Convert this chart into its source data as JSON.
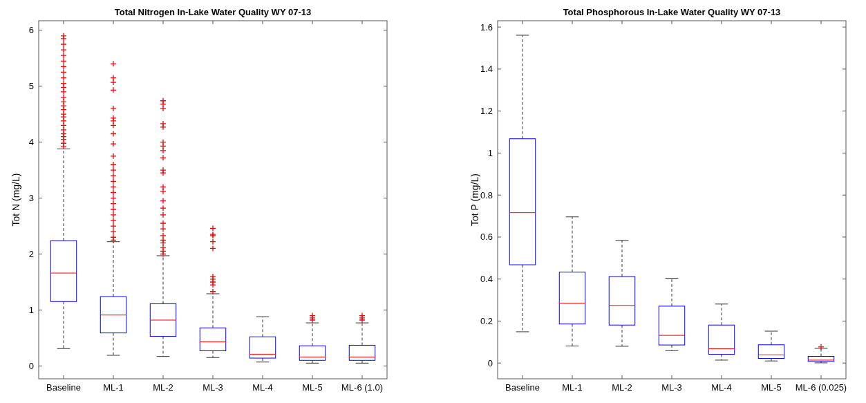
{
  "chart_data": [
    {
      "type": "box",
      "title": "Total Nitrogen In-Lake Water Quality WY 07-13",
      "ylabel": "Tot N (mg/L)",
      "categories": [
        "Baseline",
        "ML-1",
        "ML-2",
        "ML-3",
        "ML-4",
        "ML-5",
        "ML-6 (1.0)"
      ],
      "color": "#0000ff",
      "marker": "cross",
      "ylim": [
        -0.23,
        6.17
      ],
      "yticks": [
        0,
        1,
        2,
        3,
        4,
        5,
        6
      ],
      "boxes": [
        {
          "low": 0.31,
          "q1": 1.15,
          "median": 1.66,
          "q3": 2.24,
          "high": 3.88,
          "outliers": [
            3.92,
            3.98,
            4.05,
            4.1,
            4.15,
            4.22,
            4.3,
            4.38,
            4.45,
            4.5,
            4.58,
            4.65,
            4.72,
            4.8,
            4.9,
            4.98,
            5.05,
            5.15,
            5.25,
            5.35,
            5.45,
            5.55,
            5.65,
            5.75,
            5.85,
            5.9
          ]
        },
        {
          "low": 0.19,
          "q1": 0.59,
          "median": 0.91,
          "q3": 1.24,
          "high": 2.22,
          "outliers": [
            2.25,
            2.3,
            2.4,
            2.5,
            2.6,
            2.7,
            2.8,
            2.9,
            3.0,
            3.1,
            3.2,
            3.3,
            3.4,
            3.5,
            3.6,
            3.75,
            3.97,
            4.15,
            4.3,
            4.38,
            4.43,
            4.6,
            4.93,
            5.07,
            5.15,
            5.4
          ]
        },
        {
          "low": 0.17,
          "q1": 0.53,
          "median": 0.82,
          "q3": 1.11,
          "high": 1.97,
          "outliers": [
            2.0,
            2.05,
            2.12,
            2.2,
            2.25,
            2.33,
            2.45,
            2.55,
            2.7,
            2.82,
            2.95,
            3.12,
            3.2,
            3.45,
            3.5,
            3.72,
            3.85,
            3.93,
            4.0,
            4.27,
            4.33,
            4.6,
            4.68,
            4.74
          ]
        },
        {
          "low": 0.15,
          "q1": 0.27,
          "median": 0.43,
          "q3": 0.68,
          "high": 1.29,
          "outliers": [
            1.33,
            1.45,
            1.5,
            1.55,
            1.6,
            2.1,
            2.22,
            2.33,
            2.35,
            2.46
          ]
        },
        {
          "low": 0.07,
          "q1": 0.14,
          "median": 0.21,
          "q3": 0.52,
          "high": 0.88
        },
        {
          "low": 0.05,
          "q1": 0.1,
          "median": 0.16,
          "q3": 0.36,
          "high": 0.77,
          "outliers": [
            0.82,
            0.86,
            0.9
          ]
        },
        {
          "low": 0.05,
          "q1": 0.1,
          "median": 0.16,
          "q3": 0.37,
          "high": 0.77,
          "outliers": [
            0.82,
            0.86,
            0.9
          ]
        }
      ]
    },
    {
      "type": "box",
      "title": "Total Phosphorous In-Lake Water Quality WY 07-13",
      "ylabel": "Tot P (mg/L)",
      "categories": [
        "Baseline",
        "ML-1",
        "ML-2",
        "ML-3",
        "ML-4",
        "ML-5",
        "ML-6 (0.025)"
      ],
      "color": "#0000ff",
      "marker": "cross",
      "ylim": [
        -0.075,
        1.63
      ],
      "yticks": [
        0,
        0.2,
        0.4,
        0.6,
        0.8,
        1,
        1.2,
        1.4,
        1.6
      ],
      "boxes": [
        {
          "low": 0.149,
          "q1": 0.468,
          "median": 0.716,
          "q3": 1.068,
          "high": 1.561
        },
        {
          "low": 0.081,
          "q1": 0.186,
          "median": 0.285,
          "q3": 0.433,
          "high": 0.696
        },
        {
          "low": 0.08,
          "q1": 0.181,
          "median": 0.275,
          "q3": 0.412,
          "high": 0.584
        },
        {
          "low": 0.059,
          "q1": 0.086,
          "median": 0.132,
          "q3": 0.271,
          "high": 0.404
        },
        {
          "low": 0.014,
          "q1": 0.042,
          "median": 0.068,
          "q3": 0.181,
          "high": 0.281
        },
        {
          "low": 0.01,
          "q1": 0.022,
          "median": 0.039,
          "q3": 0.087,
          "high": 0.152
        },
        {
          "low": 0.001,
          "q1": 0.008,
          "median": 0.014,
          "q3": 0.032,
          "high": 0.07,
          "outliers": [
            0.077
          ]
        }
      ]
    }
  ]
}
